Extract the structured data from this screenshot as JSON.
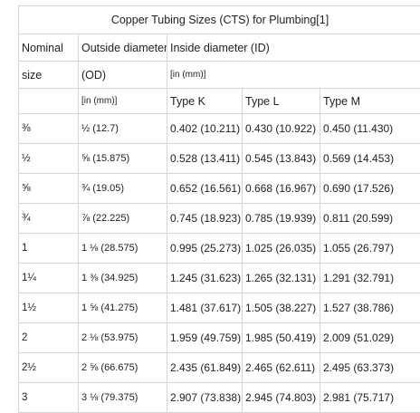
{
  "table": {
    "caption": "Copper Tubing Sizes (CTS) for Plumbing[1]",
    "header": {
      "nominal": "Nominal",
      "size": "size",
      "od_label": "Outside diameter",
      "od_abbr": "(OD)",
      "od_unit": "[in (mm)]",
      "id_label": "Inside diameter (ID)",
      "id_unit": "[in (mm)]",
      "type_k": "Type K",
      "type_l": "Type L",
      "type_m": "Type M"
    },
    "rows": [
      {
        "nominal": "⅜",
        "od": "½ (12.7)",
        "k": "0.402 (10.211)",
        "l": "0.430 (10.922)",
        "m": "0.450 (11.430)"
      },
      {
        "nominal": "½",
        "od": "⅝ (15.875)",
        "k": "0.528 (13.411)",
        "l": "0.545 (13.843)",
        "m": "0.569 (14.453)"
      },
      {
        "nominal": "⅝",
        "od": "¾ (19.05)",
        "k": "0.652 (16.561)",
        "l": "0.668 (16.967)",
        "m": "0.690 (17.526)"
      },
      {
        "nominal": "¾",
        "od": "⅞ (22.225)",
        "k": "0.745 (18.923)",
        "l": "0.785 (19.939)",
        "m": "0.811 (20.599)"
      },
      {
        "nominal": "1",
        "od": "1 ⅛ (28.575)",
        "k": "0.995 (25.273)",
        "l": "1.025 (26.035)",
        "m": "1.055 (26.797)"
      },
      {
        "nominal": "1¼",
        "od": "1 ⅜ (34.925)",
        "k": "1.245 (31.623)",
        "l": "1.265 (32.131)",
        "m": "1.291 (32.791)"
      },
      {
        "nominal": "1½",
        "od": "1 ⅝ (41.275)",
        "k": "1.481 (37.617)",
        "l": "1.505 (38.227)",
        "m": "1.527 (38.786)"
      },
      {
        "nominal": "2",
        "od": "2 ⅛ (53.975)",
        "k": "1.959 (49.759)",
        "l": "1.985 (50.419)",
        "m": "2.009 (51.029)"
      },
      {
        "nominal": "2½",
        "od": "2 ⅝ (66.675)",
        "k": "2.435 (61.849)",
        "l": "2.465 (62.611)",
        "m": "2.495 (63.373)"
      },
      {
        "nominal": "3",
        "od": "3 ⅛ (79.375)",
        "k": "2.907 (73.838)",
        "l": "2.945 (74.803)",
        "m": "2.981 (75.717)"
      }
    ]
  }
}
